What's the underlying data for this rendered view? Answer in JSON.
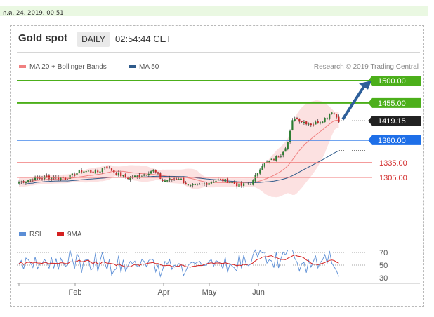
{
  "top_bar": {
    "datetime": "ก.ค. 24, 2019, 00:51"
  },
  "header": {
    "title": "Gold spot",
    "timeframe": "DAILY",
    "time": "02:54:44 CET"
  },
  "legend": {
    "items": [
      {
        "name": "MA 20 + Bollinger Bands",
        "color": "#f08080"
      },
      {
        "name": "MA 50",
        "color": "#2e5a8a"
      }
    ],
    "credit": "Research © 2019 Trading Central"
  },
  "colors": {
    "up": "#2e7d32",
    "down": "#c62828",
    "wick": "#333333",
    "green_level": "#4caf1a",
    "blue_level": "#1e6fe8",
    "red_level": "#f07a7a",
    "band_fill": "#fbd9d9",
    "ma20": "#f08080",
    "ma50": "#2e5a8a",
    "arrow": "#2d5f9a",
    "rsi": "#5b8ed6",
    "rsi_ma": "#d42020"
  },
  "chart_data": [
    {
      "type": "candlestick",
      "ylim": [
        1250,
        1520
      ],
      "x_tick_labels": [
        "Feb",
        "Apr",
        "May",
        "Jun"
      ],
      "levels": [
        {
          "value": 1500,
          "label": "1500.00",
          "kind": "resistance"
        },
        {
          "value": 1455,
          "label": "1455.00",
          "kind": "resistance"
        },
        {
          "value": 1419.15,
          "label": "1419.15",
          "kind": "last"
        },
        {
          "value": 1380,
          "label": "1380.00",
          "kind": "pivot"
        },
        {
          "value": 1335,
          "label": "1335.00",
          "kind": "support"
        },
        {
          "value": 1305,
          "label": "1305.00",
          "kind": "support"
        }
      ],
      "series": [
        {
          "name": "MA 20 + Bollinger Bands"
        },
        {
          "name": "MA 50"
        }
      ]
    },
    {
      "type": "line",
      "ylim": [
        20,
        80
      ],
      "y_tick_labels": [
        "70",
        "50",
        "30"
      ],
      "series": [
        {
          "name": "RSI"
        },
        {
          "name": "9MA"
        }
      ]
    }
  ]
}
